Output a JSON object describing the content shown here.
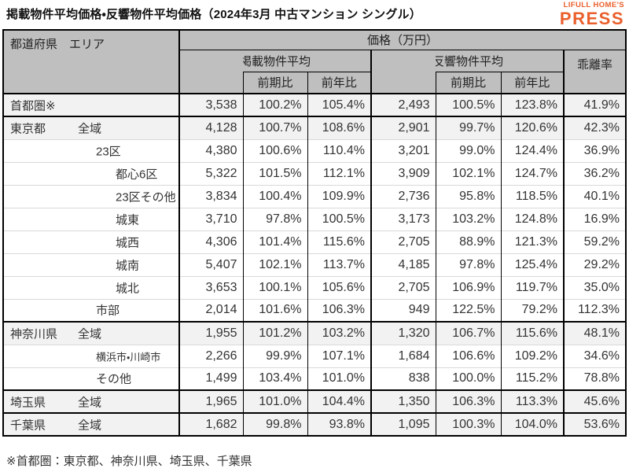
{
  "title": "掲載物件平均価格・反響物件平均価格（2024年3月 中古マンション シングル）",
  "logo": {
    "brand": "LIFULL HOME'S",
    "product": "PRESS",
    "color": "#ea5f2b"
  },
  "footnote": "※首都圏：東京都、神奈川県、埼玉県、千葉県",
  "colors": {
    "header_bg": "#bfbfbf",
    "shaded_row_bg": "#f2f2f2",
    "grid_light": "#d9d9d9",
    "border": "#000000",
    "accent_orange": "#ea5f2b"
  },
  "table": {
    "corner_header": "都道府県　エリア",
    "price_unit_header": "価格（万円）",
    "group_headers": {
      "listed": "掲載物件平均",
      "inquiry": "反響物件平均",
      "gap": "乖離率"
    },
    "sub_headers": {
      "prev_period": "前期比",
      "prev_year": "前年比"
    },
    "rows": [
      {
        "pref": "首都圏※",
        "area": "",
        "level": 0,
        "shaded": true,
        "section": true,
        "small": false,
        "values": [
          "3,538",
          "100.2%",
          "105.4%",
          "2,493",
          "100.5%",
          "123.8%",
          "41.9%"
        ]
      },
      {
        "pref": "東京都",
        "area": "全域",
        "level": 1,
        "shaded": true,
        "section": true,
        "small": false,
        "values": [
          "4,128",
          "100.7%",
          "108.6%",
          "2,901",
          "99.7%",
          "120.6%",
          "42.3%"
        ]
      },
      {
        "pref": "",
        "area": "23区",
        "level": 2,
        "shaded": false,
        "section": false,
        "small": false,
        "values": [
          "4,380",
          "100.6%",
          "110.4%",
          "3,201",
          "99.0%",
          "124.4%",
          "36.9%"
        ]
      },
      {
        "pref": "",
        "area": "都心6区",
        "level": 3,
        "shaded": false,
        "section": false,
        "small": false,
        "values": [
          "5,322",
          "101.5%",
          "112.1%",
          "3,909",
          "102.1%",
          "124.7%",
          "36.2%"
        ]
      },
      {
        "pref": "",
        "area": "23区その他",
        "level": 3,
        "shaded": false,
        "section": false,
        "small": false,
        "values": [
          "3,834",
          "100.4%",
          "109.9%",
          "2,736",
          "95.8%",
          "118.5%",
          "40.1%"
        ]
      },
      {
        "pref": "",
        "area": "城東",
        "level": 3,
        "shaded": false,
        "section": false,
        "small": false,
        "values": [
          "3,710",
          "97.8%",
          "100.5%",
          "3,173",
          "103.2%",
          "124.8%",
          "16.9%"
        ]
      },
      {
        "pref": "",
        "area": "城西",
        "level": 3,
        "shaded": false,
        "section": false,
        "small": false,
        "values": [
          "4,306",
          "101.4%",
          "115.6%",
          "2,705",
          "88.9%",
          "121.3%",
          "59.2%"
        ]
      },
      {
        "pref": "",
        "area": "城南",
        "level": 3,
        "shaded": false,
        "section": false,
        "small": false,
        "values": [
          "5,407",
          "102.1%",
          "113.7%",
          "4,185",
          "97.8%",
          "125.4%",
          "29.2%"
        ]
      },
      {
        "pref": "",
        "area": "城北",
        "level": 3,
        "shaded": false,
        "section": false,
        "small": false,
        "values": [
          "3,653",
          "100.1%",
          "105.6%",
          "2,705",
          "106.9%",
          "119.7%",
          "35.0%"
        ]
      },
      {
        "pref": "",
        "area": "市部",
        "level": 2,
        "shaded": false,
        "section": false,
        "small": false,
        "values": [
          "2,014",
          "101.6%",
          "106.3%",
          "949",
          "122.5%",
          "79.2%",
          "112.3%"
        ]
      },
      {
        "pref": "神奈川県",
        "area": "全域",
        "level": 1,
        "shaded": true,
        "section": true,
        "small": false,
        "values": [
          "1,955",
          "101.2%",
          "103.2%",
          "1,320",
          "106.7%",
          "115.6%",
          "48.1%"
        ]
      },
      {
        "pref": "",
        "area": "横浜市・川崎市",
        "level": 2,
        "shaded": false,
        "section": false,
        "small": true,
        "values": [
          "2,266",
          "99.9%",
          "107.1%",
          "1,684",
          "106.6%",
          "109.2%",
          "34.6%"
        ]
      },
      {
        "pref": "",
        "area": "その他",
        "level": 2,
        "shaded": false,
        "section": false,
        "small": false,
        "values": [
          "1,499",
          "103.4%",
          "101.0%",
          "838",
          "100.0%",
          "115.2%",
          "78.8%"
        ]
      },
      {
        "pref": "埼玉県",
        "area": "全域",
        "level": 1,
        "shaded": true,
        "section": true,
        "small": false,
        "values": [
          "1,965",
          "101.0%",
          "104.4%",
          "1,350",
          "106.3%",
          "113.3%",
          "45.6%"
        ]
      },
      {
        "pref": "千葉県",
        "area": "全域",
        "level": 1,
        "shaded": true,
        "section": true,
        "small": false,
        "values": [
          "1,682",
          "99.8%",
          "93.8%",
          "1,095",
          "100.3%",
          "104.0%",
          "53.6%"
        ]
      }
    ]
  },
  "chart_data": {
    "type": "table",
    "title": "掲載物件平均価格・反響物件平均価格（2024年3月 中古マンション シングル）",
    "unit": "万円",
    "columns": [
      "都道府県",
      "エリア",
      "掲載物件平均",
      "掲載物件平均 前期比",
      "掲載物件平均 前年比",
      "反響物件平均",
      "反響物件平均 前期比",
      "反響物件平均 前年比",
      "乖離率"
    ],
    "rows": [
      [
        "首都圏※",
        "",
        3538,
        "100.2%",
        "105.4%",
        2493,
        "100.5%",
        "123.8%",
        "41.9%"
      ],
      [
        "東京都",
        "全域",
        4128,
        "100.7%",
        "108.6%",
        2901,
        "99.7%",
        "120.6%",
        "42.3%"
      ],
      [
        "東京都",
        "23区",
        4380,
        "100.6%",
        "110.4%",
        3201,
        "99.0%",
        "124.4%",
        "36.9%"
      ],
      [
        "東京都",
        "都心6区",
        5322,
        "101.5%",
        "112.1%",
        3909,
        "102.1%",
        "124.7%",
        "36.2%"
      ],
      [
        "東京都",
        "23区その他",
        3834,
        "100.4%",
        "109.9%",
        2736,
        "95.8%",
        "118.5%",
        "40.1%"
      ],
      [
        "東京都",
        "城東",
        3710,
        "97.8%",
        "100.5%",
        3173,
        "103.2%",
        "124.8%",
        "16.9%"
      ],
      [
        "東京都",
        "城西",
        4306,
        "101.4%",
        "115.6%",
        2705,
        "88.9%",
        "121.3%",
        "59.2%"
      ],
      [
        "東京都",
        "城南",
        5407,
        "102.1%",
        "113.7%",
        4185,
        "97.8%",
        "125.4%",
        "29.2%"
      ],
      [
        "東京都",
        "城北",
        3653,
        "100.1%",
        "105.6%",
        2705,
        "106.9%",
        "119.7%",
        "35.0%"
      ],
      [
        "東京都",
        "市部",
        2014,
        "101.6%",
        "106.3%",
        949,
        "122.5%",
        "79.2%",
        "112.3%"
      ],
      [
        "神奈川県",
        "全域",
        1955,
        "101.2%",
        "103.2%",
        1320,
        "106.7%",
        "115.6%",
        "48.1%"
      ],
      [
        "神奈川県",
        "横浜市・川崎市",
        2266,
        "99.9%",
        "107.1%",
        1684,
        "106.6%",
        "109.2%",
        "34.6%"
      ],
      [
        "神奈川県",
        "その他",
        1499,
        "103.4%",
        "101.0%",
        838,
        "100.0%",
        "115.2%",
        "78.8%"
      ],
      [
        "埼玉県",
        "全域",
        1965,
        "101.0%",
        "104.4%",
        1350,
        "106.3%",
        "113.3%",
        "45.6%"
      ],
      [
        "千葉県",
        "全域",
        1682,
        "99.8%",
        "93.8%",
        1095,
        "100.3%",
        "104.0%",
        "53.6%"
      ]
    ],
    "footnote": "※首都圏：東京都、神奈川県、埼玉県、千葉県"
  }
}
